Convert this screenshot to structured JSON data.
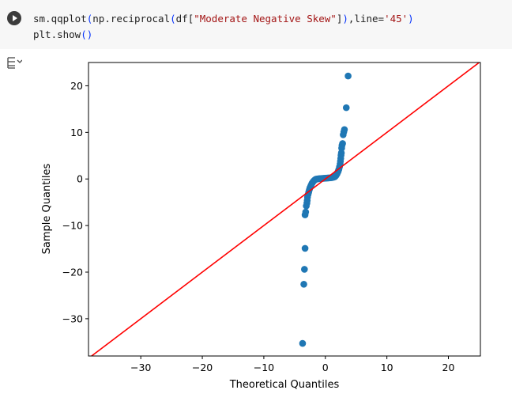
{
  "cell": {
    "code_lines": [
      [
        {
          "t": "sm.qqplot",
          "c": "plain"
        },
        {
          "t": "(",
          "c": "paren"
        },
        {
          "t": "np.reciprocal",
          "c": "plain"
        },
        {
          "t": "(",
          "c": "paren"
        },
        {
          "t": "df[",
          "c": "plain"
        },
        {
          "t": "\"Moderate Negative Skew\"",
          "c": "str"
        },
        {
          "t": "]",
          "c": "plain"
        },
        {
          "t": ")",
          "c": "paren"
        },
        {
          "t": ",line=",
          "c": "plain"
        },
        {
          "t": "'45'",
          "c": "str"
        },
        {
          "t": ")",
          "c": "paren"
        }
      ],
      [
        {
          "t": "plt.show",
          "c": "plain"
        },
        {
          "t": "()",
          "c": "paren"
        }
      ]
    ]
  },
  "icons": {
    "run": "play-circle-icon",
    "output": "output-toggle-icon"
  },
  "colors": {
    "points": "#1f77b4",
    "line": "#ff0000",
    "code_bg": "#f7f7f7"
  },
  "chart_data": {
    "type": "scatter",
    "title": "",
    "xlabel": "Theoretical Quantiles",
    "ylabel": "Sample Quantiles",
    "xlim": [
      -38.5,
      25.2
    ],
    "ylim": [
      -38,
      25
    ],
    "xticks": [
      -30,
      -20,
      -10,
      0,
      10,
      20
    ],
    "yticks": [
      -30,
      -20,
      -10,
      0,
      10,
      20
    ],
    "tick_labels_x": [
      "−30",
      "−20",
      "−10",
      "0",
      "10",
      "20"
    ],
    "tick_labels_y": [
      "−30",
      "−20",
      "−10",
      "0",
      "10",
      "20"
    ],
    "reference_line": {
      "kind": "45-degree",
      "slope": 1,
      "intercept": 0
    },
    "series": [
      {
        "points": [
          [
            -3.7,
            -35.3
          ],
          [
            -3.5,
            -22.6
          ],
          [
            -3.4,
            -19.4
          ],
          [
            -3.3,
            -14.9
          ],
          [
            -3.3,
            -7.7
          ],
          [
            -3.2,
            -7.1
          ],
          [
            -3.1,
            -5.8
          ],
          [
            -3.0,
            -5.2
          ],
          [
            -2.95,
            -4.6
          ],
          [
            -2.9,
            -3.9
          ],
          [
            -2.8,
            -3.3
          ],
          [
            -2.7,
            -2.8
          ],
          [
            -2.6,
            -2.3
          ],
          [
            -2.5,
            -1.9
          ],
          [
            -2.4,
            -1.6
          ],
          [
            -2.3,
            -1.3
          ],
          [
            -2.2,
            -1.0
          ],
          [
            -2.1,
            -0.8
          ],
          [
            -2.0,
            -0.6
          ],
          [
            -1.9,
            -0.45
          ],
          [
            -1.8,
            -0.3
          ],
          [
            -1.7,
            -0.2
          ],
          [
            -1.6,
            -0.1
          ],
          [
            -1.5,
            -0.04
          ],
          [
            -1.3,
            0.0
          ],
          [
            -1.1,
            0.04
          ],
          [
            -0.9,
            0.07
          ],
          [
            -0.7,
            0.09
          ],
          [
            -0.5,
            0.11
          ],
          [
            -0.3,
            0.13
          ],
          [
            -0.1,
            0.15
          ],
          [
            0.1,
            0.17
          ],
          [
            0.3,
            0.19
          ],
          [
            0.5,
            0.21
          ],
          [
            0.7,
            0.23
          ],
          [
            0.9,
            0.26
          ],
          [
            1.1,
            0.3
          ],
          [
            1.3,
            0.36
          ],
          [
            1.5,
            0.45
          ],
          [
            1.6,
            0.55
          ],
          [
            1.7,
            0.7
          ],
          [
            1.8,
            0.9
          ],
          [
            1.9,
            1.1
          ],
          [
            2.0,
            1.4
          ],
          [
            2.1,
            1.7
          ],
          [
            2.2,
            2.1
          ],
          [
            2.3,
            2.6
          ],
          [
            2.4,
            3.2
          ],
          [
            2.45,
            3.8
          ],
          [
            2.5,
            4.4
          ],
          [
            2.55,
            5.1
          ],
          [
            2.6,
            5.6
          ],
          [
            2.65,
            6.6
          ],
          [
            2.7,
            7.2
          ],
          [
            2.8,
            7.6
          ],
          [
            2.9,
            9.5
          ],
          [
            3.0,
            10.1
          ],
          [
            3.1,
            10.6
          ],
          [
            3.4,
            15.3
          ],
          [
            3.7,
            22.1
          ]
        ]
      }
    ]
  }
}
